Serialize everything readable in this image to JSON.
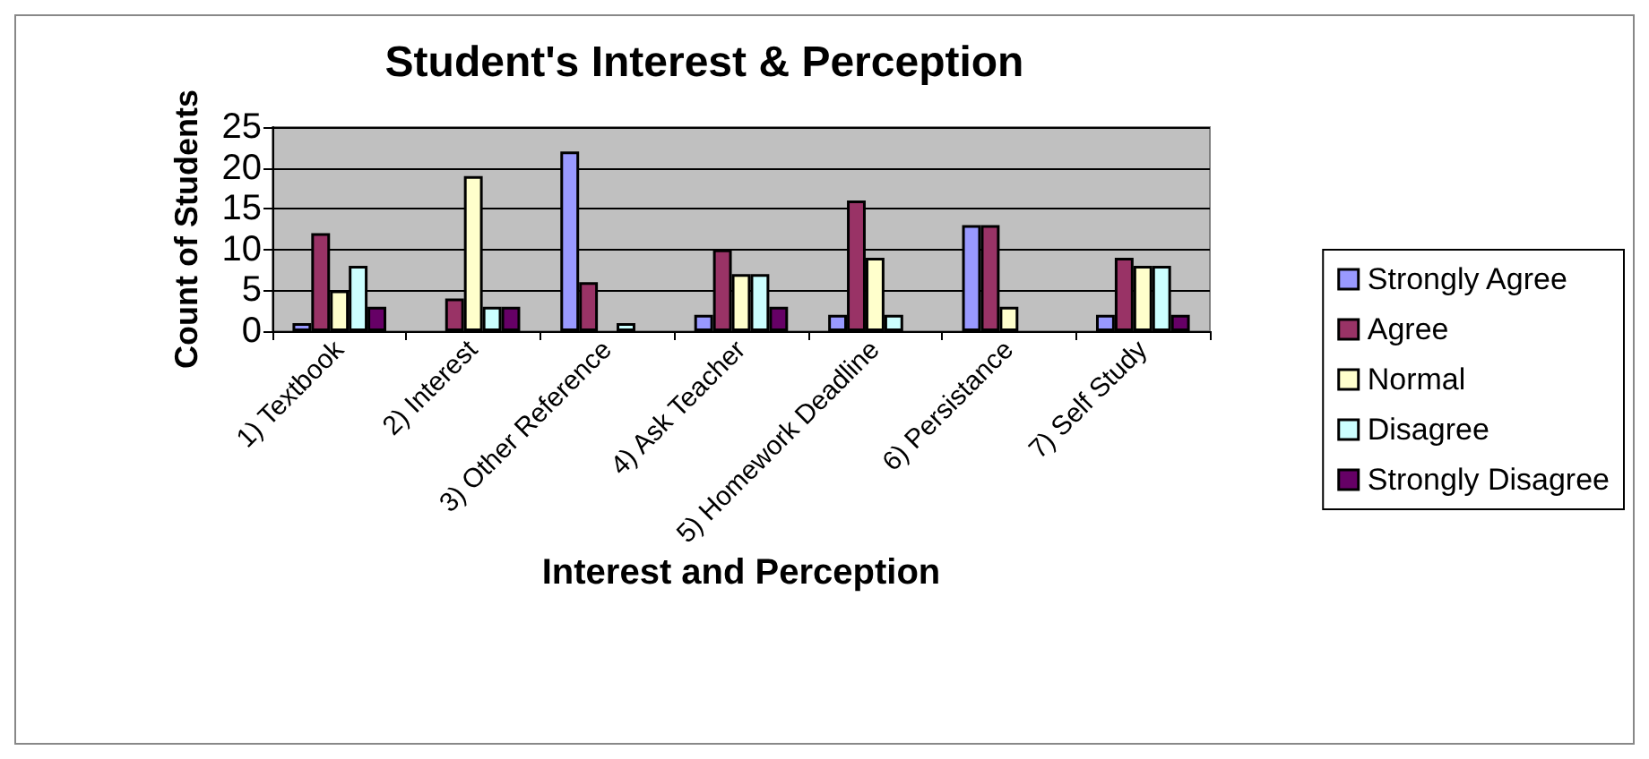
{
  "chart_data": {
    "type": "bar",
    "title": "Student's Interest & Perception",
    "xlabel": "Interest and Perception",
    "ylabel": "Count of Students",
    "categories": [
      "1) Textbook",
      "2) Interest",
      "3) Other Reference",
      "4) Ask Teacher",
      "5) Homework Deadline",
      "6) Persistance",
      "7) Self Study"
    ],
    "series": [
      {
        "name": "Strongly Agree",
        "color": "#9999ff",
        "values": [
          1,
          0,
          22,
          2,
          2,
          13,
          2
        ]
      },
      {
        "name": "Agree",
        "color": "#993366",
        "values": [
          12,
          4,
          6,
          10,
          16,
          13,
          9
        ]
      },
      {
        "name": "Normal",
        "color": "#ffffcc",
        "values": [
          5,
          19,
          0,
          7,
          9,
          3,
          8
        ]
      },
      {
        "name": "Disagree",
        "color": "#ccffff",
        "values": [
          8,
          3,
          1,
          7,
          2,
          0,
          8
        ]
      },
      {
        "name": "Strongly Disagree",
        "color": "#660066",
        "values": [
          3,
          3,
          0,
          3,
          0,
          0,
          2
        ]
      }
    ],
    "ylim": [
      0,
      25
    ],
    "yticks": [
      0,
      5,
      10,
      15,
      20,
      25
    ],
    "grid": "y",
    "legend": "right"
  }
}
